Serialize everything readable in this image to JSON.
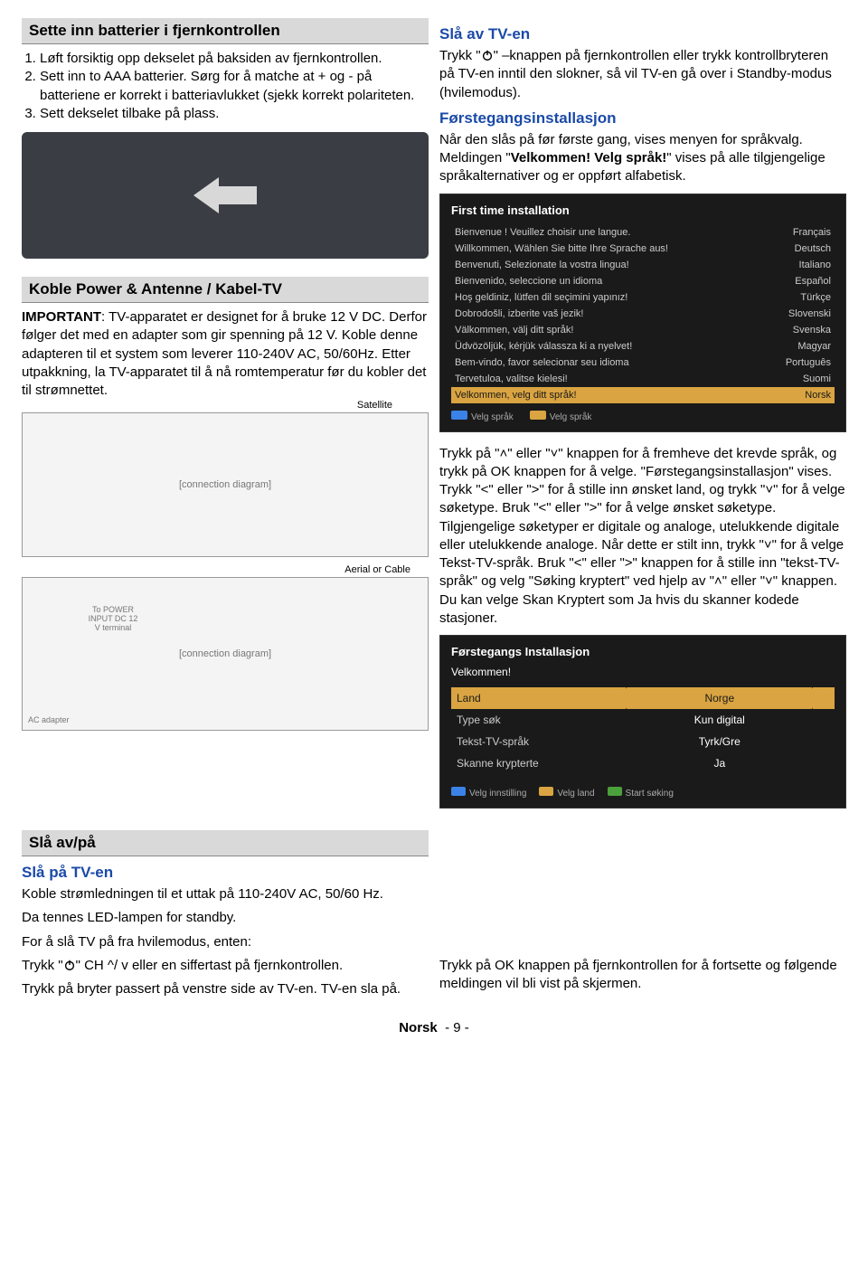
{
  "left": {
    "h1": "Sette inn batterier i fjernkontrollen",
    "steps": [
      "Løft forsiktig opp dekselet på baksiden av fjernkontrollen.",
      "Sett inn to AAA batterier. Sørg for å matche at + og - på batteriene er korrekt i batteriavlukket (sjekk korrekt polariteten.",
      "Sett dekselet tilbake på plass."
    ],
    "h2": "Koble Power & Antenne / Kabel-TV",
    "importantLabel": "IMPORTANT",
    "importantText": ": TV-apparatet er designet for å bruke 12 V DC. Derfor følger det med en adapter som gir spenning på 12 V. Koble denne adapteren til et system som leverer 110-240V AC, 50/60Hz. Etter utpakkning, la TV-apparatet til å nå romtemperatur før du kobler det til strømnettet.",
    "satellite": "Satellite",
    "aerial": "Aerial or Cable",
    "toPower": "To POWER INPUT DC 12 V terminal",
    "acAdapter": "AC adapter",
    "diagramPlaceholder": "[connection diagram]"
  },
  "right": {
    "h1": "Slå av TV-en",
    "p1a": "Trykk \"",
    "p1b": "\" –knappen på fjernkontrollen eller trykk kontrollbryteren på TV-en inntil den slokner, så vil TV-en gå over i Standby-modus (hvilemodus).",
    "h2": "Førstegangsinstallasjon",
    "p2a": "Når den slås på før første gang, vises menyen for språkvalg. Meldingen \"",
    "p2b": "Velkommen! Velg språk!",
    "p2c": "\" vises på alle tilgjengelige språkalternativer og er oppført alfabetisk.",
    "shot1": {
      "title": "First time installation",
      "rows": [
        [
          "Bienvenue ! Veuillez choisir une langue.",
          "Français"
        ],
        [
          "Willkommen, Wählen Sie bitte Ihre Sprache aus!",
          "Deutsch"
        ],
        [
          "Benvenuti, Selezionate la vostra lingua!",
          "Italiano"
        ],
        [
          "Bienvenido, seleccione un idioma",
          "Español"
        ],
        [
          "Hoş geldiniz, lütfen dil seçimini yapınız!",
          "Türkçe"
        ],
        [
          "Dobrodošli, izberite vaš jezik!",
          "Slovenski"
        ],
        [
          "Välkommen, välj ditt språk!",
          "Svenska"
        ],
        [
          "Üdvözöljük, kérjük válassza ki a nyelvet!",
          "Magyar"
        ],
        [
          "Bem-vindo, favor selecionar seu idioma",
          "Português"
        ],
        [
          "Tervetuloa, valitse kielesi!",
          "Suomi"
        ],
        [
          "Velkommen, velg ditt språk!",
          "Norsk"
        ]
      ],
      "selectedIndex": 10,
      "footer1": "Velg språk",
      "footer2": "Velg språk",
      "dot1Color": "#3a82e8",
      "dot2Color": "#d9a441"
    },
    "p3": "Trykk på \"˄\" eller \"˅\" knappen for å fremheve det krevde språk, og trykk på OK knappen for å velge. \"Førstegangsinstallasjon\" vises. Trykk \"˂\" eller \"˃\" for å stille inn ønsket land, og trykk \"˅\" for å velge søketype. Bruk \"˂\" eller \"˃\" for å velge ønsket søketype. Tilgjengelige søketyper er digitale og analoge, utelukkende digitale eller utelukkende analoge. Når dette er stilt inn, trykk \"˅\" for å velge Tekst-TV-språk. Bruk \"˂\" eller \"˃\" knappen for å stille inn \"tekst-TV-språk\" og velg \"Søking kryptert\" ved hjelp av \"˄\" eller \"˅\" knappen. Du kan velge Skan Kryptert som Ja hvis du skanner kodede stasjoner.",
    "shot2": {
      "title": "Førstegangs Installasjon",
      "welcome": "Velkommen!",
      "rows": [
        {
          "label": "Land",
          "val": "Norge",
          "sel": true
        },
        {
          "label": "Type søk",
          "val": "Kun digital",
          "sel": false
        },
        {
          "label": "Tekst-TV-språk",
          "val": "Tyrk/Gre",
          "sel": false
        },
        {
          "label": "Skanne krypterte",
          "val": "Ja",
          "sel": false
        }
      ],
      "footerBtns": [
        {
          "color": "#3a82e8",
          "label": "Velg innstilling"
        },
        {
          "color": "#d9a441",
          "label": "Velg land"
        },
        {
          "color": "#4aa03a",
          "label": "Start søking"
        }
      ]
    }
  },
  "bottom": {
    "h1": "Slå av/på",
    "h2": "Slå på TV-en",
    "p1": "Koble strømledningen til et uttak på 110-240V AC, 50/60 Hz.",
    "p2": "Da tennes LED-lampen for standby.",
    "p3": "For å slå TV på fra hvilemodus, enten:",
    "p4a": "Trykk \"",
    "p4b": "\" CH ^/ v eller en siffertast på fjernkontrollen.",
    "p5": "Trykk på bryter passert på venstre side av TV-en. TV-en sla på.",
    "rightp": "Trykk på OK knappen på fjernkontrollen for å fortsette og følgende meldingen vil bli vist på skjermen."
  },
  "footer": {
    "lang": "Norsk",
    "page": "- 9 -"
  }
}
